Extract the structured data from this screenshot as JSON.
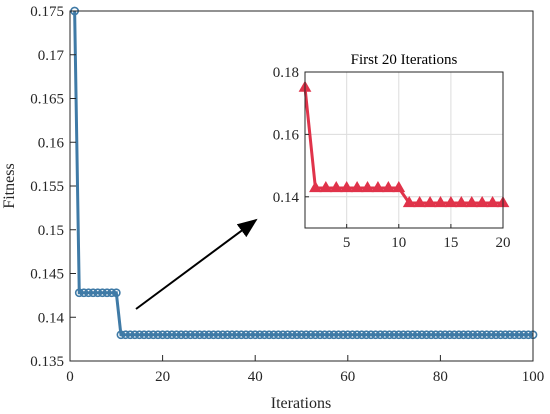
{
  "chart_data": [
    {
      "type": "line",
      "title": "",
      "xlabel": "Iterations",
      "ylabel": "Fitness",
      "xlim": [
        0,
        100
      ],
      "ylim": [
        0.135,
        0.175
      ],
      "xticks": [
        0,
        20,
        40,
        60,
        80,
        100
      ],
      "xtick_labels": [
        "0",
        "20",
        "40",
        "60",
        "80",
        "100"
      ],
      "yticks": [
        0.135,
        0.14,
        0.145,
        0.15,
        0.155,
        0.16,
        0.165,
        0.17,
        0.175
      ],
      "ytick_labels": [
        "0.135",
        "0.14",
        "0.145",
        "0.15",
        "0.155",
        "0.16",
        "0.165",
        "0.17",
        "0.175"
      ],
      "grid": false,
      "marker": "circle",
      "color": "#3f7aa6",
      "series": [
        {
          "x": [
            1,
            2,
            3,
            4,
            5,
            6,
            7,
            8,
            9,
            10,
            11,
            12,
            13,
            14,
            15,
            16,
            17,
            18,
            19,
            20,
            21,
            22,
            23,
            24,
            25,
            26,
            27,
            28,
            29,
            30,
            31,
            32,
            33,
            34,
            35,
            36,
            37,
            38,
            39,
            40,
            41,
            42,
            43,
            44,
            45,
            46,
            47,
            48,
            49,
            50,
            51,
            52,
            53,
            54,
            55,
            56,
            57,
            58,
            59,
            60,
            61,
            62,
            63,
            64,
            65,
            66,
            67,
            68,
            69,
            70,
            71,
            72,
            73,
            74,
            75,
            76,
            77,
            78,
            79,
            80,
            81,
            82,
            83,
            84,
            85,
            86,
            87,
            88,
            89,
            90,
            91,
            92,
            93,
            94,
            95,
            96,
            97,
            98,
            99,
            100
          ],
          "values": [
            0.175,
            0.1428,
            0.1428,
            0.1428,
            0.1428,
            0.1428,
            0.1428,
            0.1428,
            0.1428,
            0.1428,
            0.138,
            0.138,
            0.138,
            0.138,
            0.138,
            0.138,
            0.138,
            0.138,
            0.138,
            0.138,
            0.138,
            0.138,
            0.138,
            0.138,
            0.138,
            0.138,
            0.138,
            0.138,
            0.138,
            0.138,
            0.138,
            0.138,
            0.138,
            0.138,
            0.138,
            0.138,
            0.138,
            0.138,
            0.138,
            0.138,
            0.138,
            0.138,
            0.138,
            0.138,
            0.138,
            0.138,
            0.138,
            0.138,
            0.138,
            0.138,
            0.138,
            0.138,
            0.138,
            0.138,
            0.138,
            0.138,
            0.138,
            0.138,
            0.138,
            0.138,
            0.138,
            0.138,
            0.138,
            0.138,
            0.138,
            0.138,
            0.138,
            0.138,
            0.138,
            0.138,
            0.138,
            0.138,
            0.138,
            0.138,
            0.138,
            0.138,
            0.138,
            0.138,
            0.138,
            0.138,
            0.138,
            0.138,
            0.138,
            0.138,
            0.138,
            0.138,
            0.138,
            0.138,
            0.138,
            0.138,
            0.138,
            0.138,
            0.138,
            0.138,
            0.138,
            0.138,
            0.138,
            0.138,
            0.138,
            0.138
          ]
        }
      ]
    },
    {
      "type": "line",
      "title": "First 20 Iterations",
      "xlabel": "",
      "ylabel": "",
      "xlim": [
        1,
        20
      ],
      "ylim": [
        0.13,
        0.18
      ],
      "xticks": [
        5,
        10,
        15,
        20
      ],
      "xtick_labels": [
        "5",
        "10",
        "15",
        "20"
      ],
      "yticks": [
        0.14,
        0.16,
        0.18
      ],
      "ytick_labels": [
        "0.14",
        "0.16",
        "0.18"
      ],
      "grid": true,
      "marker": "triangle",
      "color": "#e0334a",
      "series": [
        {
          "x": [
            1,
            2,
            3,
            4,
            5,
            6,
            7,
            8,
            9,
            10,
            11,
            12,
            13,
            14,
            15,
            16,
            17,
            18,
            19,
            20
          ],
          "values": [
            0.175,
            0.1428,
            0.1428,
            0.1428,
            0.1428,
            0.1428,
            0.1428,
            0.1428,
            0.1428,
            0.1428,
            0.138,
            0.138,
            0.138,
            0.138,
            0.138,
            0.138,
            0.138,
            0.138,
            0.138,
            0.138
          ]
        }
      ]
    }
  ]
}
